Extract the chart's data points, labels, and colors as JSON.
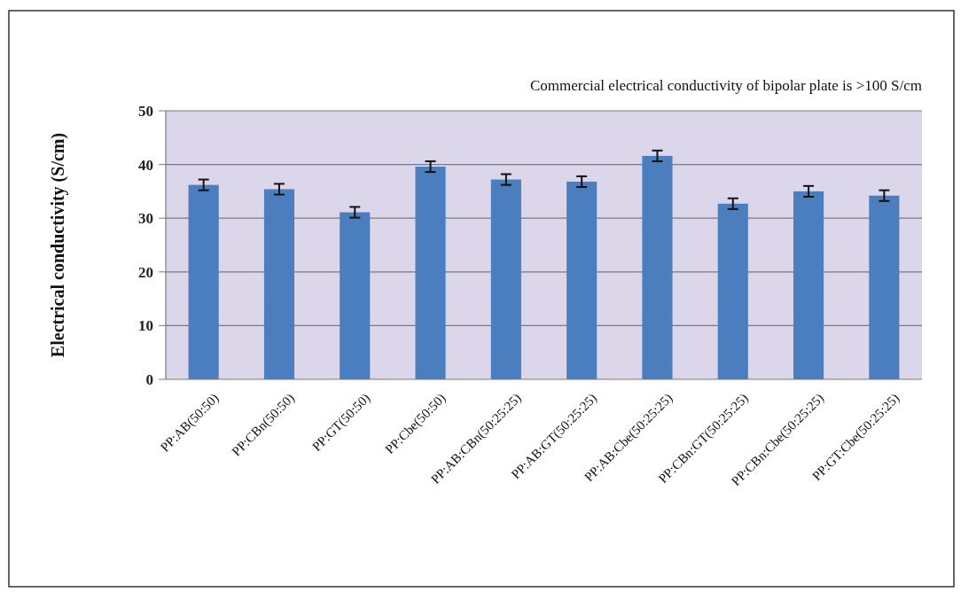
{
  "chart_data": {
    "type": "bar",
    "ylabel": "Electrical conductivity (S/cm)",
    "annotations": [
      "Commercial electrical conductivity of bipolar plate is >100 S/cm"
    ],
    "categories": [
      "PP:AB(50:50)",
      "PP:CBn(50:50)",
      "PP:GT(50:50)",
      "PP:Cbe(50:50)",
      "PP:AB:CBn(50:25:25)",
      "PP:AB:GT(50:25:25)",
      "PP:AB:Cbe(50:25:25)",
      "PP:CBn:GT(50:25:25)",
      "PP:CBn:Cbe(50:25:25)",
      "PP:GT:Cbe(50:25:25)"
    ],
    "values": [
      36.2,
      35.4,
      31.1,
      39.6,
      37.2,
      36.8,
      41.6,
      32.7,
      35.0,
      34.2
    ],
    "errors": [
      1,
      1,
      1,
      1,
      1,
      1,
      1,
      1,
      1,
      1
    ],
    "color": "#4a7ebf",
    "ylim": [
      0,
      50
    ],
    "yticks": [
      0,
      10,
      20,
      30,
      40,
      50
    ],
    "grid": "y"
  }
}
